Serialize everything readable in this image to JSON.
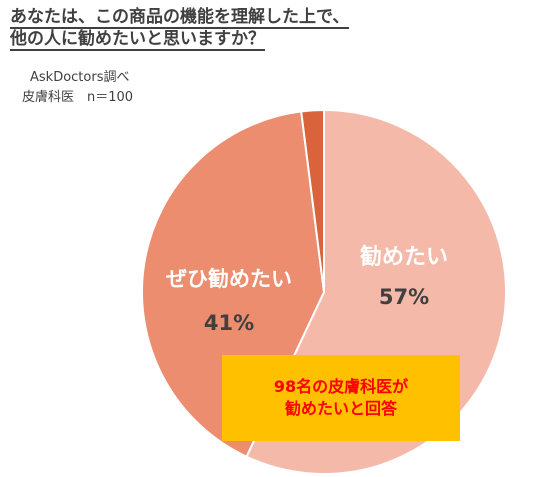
{
  "title": {
    "line1": "あなたは、この商品の機能を理解した上で、",
    "line2": "他の人に勧めたいと思いますか？"
  },
  "source": {
    "org": "AskDoctors調べ",
    "sample": "皮膚科医　n＝100"
  },
  "callout": {
    "line1": "98名の皮膚科医が",
    "line2": "勧めたいと回答"
  },
  "chart_data": {
    "type": "pie",
    "title": "あなたは、この商品の機能を理解した上で、他の人に勧めたいと思いますか？",
    "slices": [
      {
        "label": "勧めたい",
        "value": 57,
        "display": "57%",
        "color": "#f4b9a9"
      },
      {
        "label": "ぜひ勧めたい",
        "value": 41,
        "display": "41%",
        "color": "#eb8d6e"
      },
      {
        "label": "",
        "value": 2,
        "display": "",
        "color": "#d9643c"
      }
    ],
    "start_angle_deg": 0,
    "direction": "clockwise"
  }
}
